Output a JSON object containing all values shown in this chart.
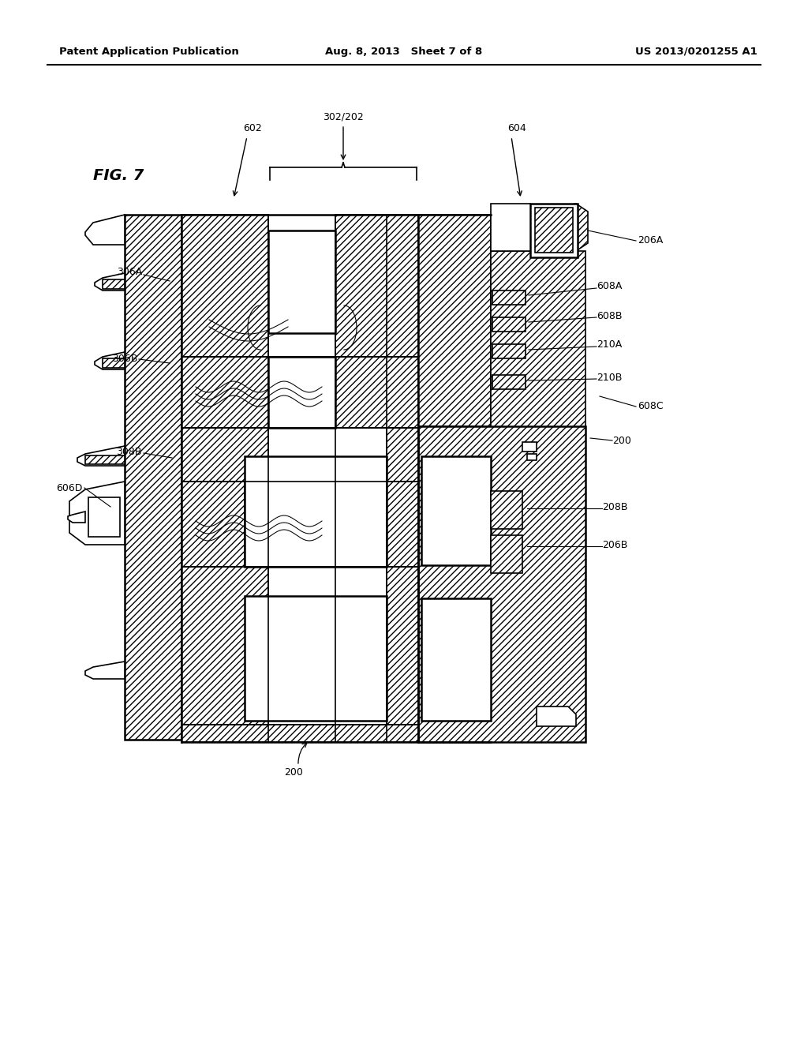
{
  "header_left": "Patent Application Publication",
  "header_center": "Aug. 8, 2013   Sheet 7 of 8",
  "header_right": "US 2013/0201255 A1",
  "fig_label": "FIG. 7",
  "background_color": "#ffffff",
  "line_color": "#000000"
}
